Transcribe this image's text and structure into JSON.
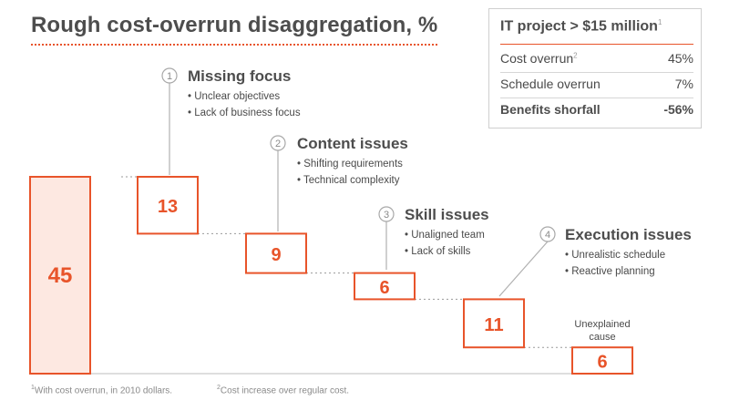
{
  "header": {
    "title": "Rough cost-overrun disaggregation, %"
  },
  "summary": {
    "heading": "IT project > $15 million",
    "heading_note": "1",
    "rows": [
      {
        "label": "Cost overrun",
        "note": "2",
        "value": "45%"
      },
      {
        "label": "Schedule overrun",
        "note": "",
        "value": "7%"
      },
      {
        "label": "Benefits shorfall",
        "note": "",
        "value": "-56%"
      }
    ]
  },
  "footnotes": [
    {
      "mark": "1",
      "text": "With cost overrun, in 2010 dollars."
    },
    {
      "mark": "2",
      "text": "Cost increase over regular cost."
    }
  ],
  "colors": {
    "accent": "#e8542a",
    "total_fill": "#fde8e1",
    "text": "#4a4a4a",
    "muted": "#9a9a9a"
  },
  "chart_data": {
    "type": "bar",
    "subtype": "waterfall",
    "title": "Rough cost-overrun disaggregation, %",
    "ylim": [
      0,
      45
    ],
    "bars": [
      {
        "value": 45,
        "base": 0,
        "kind": "total"
      },
      {
        "value": 13,
        "base": 32,
        "kind": "step"
      },
      {
        "value": 9,
        "base": 23,
        "kind": "step"
      },
      {
        "value": 6,
        "base": 17,
        "kind": "step"
      },
      {
        "value": 11,
        "base": 6,
        "kind": "step"
      },
      {
        "value": 6,
        "base": 0,
        "kind": "step"
      }
    ],
    "annotations": [
      {
        "bar": 1,
        "number": "1",
        "title": "Missing focus",
        "bullets": [
          "Unclear objectives",
          "Lack of business focus"
        ]
      },
      {
        "bar": 2,
        "number": "2",
        "title": "Content issues",
        "bullets": [
          "Shifting requirements",
          "Technical complexity"
        ]
      },
      {
        "bar": 3,
        "number": "3",
        "title": "Skill issues",
        "bullets": [
          "Unaligned team",
          "Lack of skills"
        ]
      },
      {
        "bar": 4,
        "number": "4",
        "title": "Execution issues",
        "bullets": [
          "Unrealistic schedule",
          "Reactive planning"
        ]
      }
    ],
    "unexplained_label": [
      "Unexplained",
      "cause"
    ]
  }
}
